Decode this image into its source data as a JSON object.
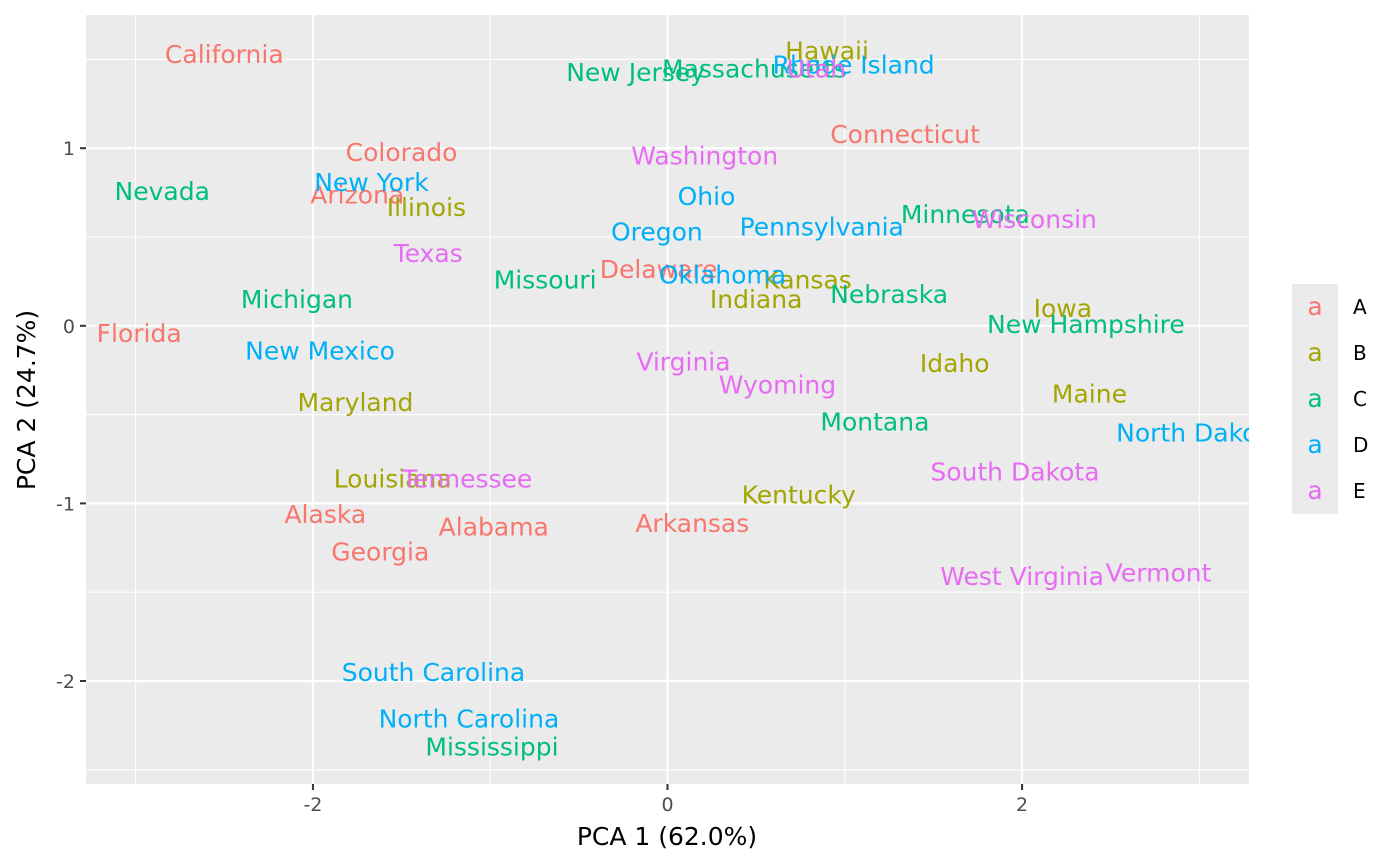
{
  "chart_data": {
    "type": "scatter",
    "xlabel": "PCA 1 (62.0%)",
    "ylabel": "PCA 2 (24.7%)",
    "xlim": [
      -3.28,
      3.28
    ],
    "ylim": [
      -2.58,
      1.75
    ],
    "x_ticks": [
      -2,
      0,
      2
    ],
    "y_ticks": [
      -2,
      -1,
      0,
      1
    ],
    "grid": true,
    "legend_position": "right",
    "legend_key_glyph": "a",
    "groups": [
      {
        "name": "A",
        "color": "#F8766D"
      },
      {
        "name": "B",
        "color": "#A3A500"
      },
      {
        "name": "C",
        "color": "#00BF7D"
      },
      {
        "name": "D",
        "color": "#00B0F6"
      },
      {
        "name": "E",
        "color": "#E76BF3"
      }
    ],
    "points": [
      {
        "label": "Alabama",
        "x": -0.98,
        "y": -1.13,
        "group": "A"
      },
      {
        "label": "Alaska",
        "x": -1.93,
        "y": -1.06,
        "group": "A"
      },
      {
        "label": "Arizona",
        "x": -1.75,
        "y": 0.74,
        "group": "A"
      },
      {
        "label": "Arkansas",
        "x": 0.14,
        "y": -1.11,
        "group": "A"
      },
      {
        "label": "California",
        "x": -2.5,
        "y": 1.53,
        "group": "A"
      },
      {
        "label": "Colorado",
        "x": -1.5,
        "y": 0.98,
        "group": "A"
      },
      {
        "label": "Connecticut",
        "x": 1.34,
        "y": 1.08,
        "group": "A"
      },
      {
        "label": "Delaware",
        "x": -0.05,
        "y": 0.32,
        "group": "A"
      },
      {
        "label": "Florida",
        "x": -2.98,
        "y": -0.04,
        "group": "A"
      },
      {
        "label": "Georgia",
        "x": -1.62,
        "y": -1.27,
        "group": "A"
      },
      {
        "label": "Hawaii",
        "x": 0.9,
        "y": 1.55,
        "group": "B"
      },
      {
        "label": "Idaho",
        "x": 1.62,
        "y": -0.21,
        "group": "B"
      },
      {
        "label": "Illinois",
        "x": -1.36,
        "y": 0.67,
        "group": "B"
      },
      {
        "label": "Indiana",
        "x": 0.5,
        "y": 0.15,
        "group": "B"
      },
      {
        "label": "Iowa",
        "x": 2.23,
        "y": 0.1,
        "group": "B"
      },
      {
        "label": "Kansas",
        "x": 0.79,
        "y": 0.26,
        "group": "B"
      },
      {
        "label": "Kentucky",
        "x": 0.74,
        "y": -0.95,
        "group": "B"
      },
      {
        "label": "Louisiana",
        "x": -1.55,
        "y": -0.86,
        "group": "B"
      },
      {
        "label": "Maine",
        "x": 2.38,
        "y": -0.38,
        "group": "B"
      },
      {
        "label": "Maryland",
        "x": -1.76,
        "y": -0.43,
        "group": "B"
      },
      {
        "label": "Massachusetts",
        "x": 0.49,
        "y": 1.45,
        "group": "C"
      },
      {
        "label": "Michigan",
        "x": -2.09,
        "y": 0.15,
        "group": "C"
      },
      {
        "label": "Minnesota",
        "x": 1.68,
        "y": 0.63,
        "group": "C"
      },
      {
        "label": "Mississippi",
        "x": -0.99,
        "y": -2.37,
        "group": "C"
      },
      {
        "label": "Missouri",
        "x": -0.69,
        "y": 0.26,
        "group": "C"
      },
      {
        "label": "Montana",
        "x": 1.17,
        "y": -0.54,
        "group": "C"
      },
      {
        "label": "Nebraska",
        "x": 1.25,
        "y": 0.18,
        "group": "C"
      },
      {
        "label": "Nevada",
        "x": -2.85,
        "y": 0.76,
        "group": "C"
      },
      {
        "label": "New Hampshire",
        "x": 2.36,
        "y": 0.01,
        "group": "C"
      },
      {
        "label": "New Jersey",
        "x": -0.18,
        "y": 1.43,
        "group": "C"
      },
      {
        "label": "New Mexico",
        "x": -1.96,
        "y": -0.14,
        "group": "D"
      },
      {
        "label": "New York",
        "x": -1.67,
        "y": 0.81,
        "group": "D"
      },
      {
        "label": "North Carolina",
        "x": -1.12,
        "y": -2.21,
        "group": "D"
      },
      {
        "label": "North Dakota",
        "x": 3.0,
        "y": -0.6,
        "group": "D"
      },
      {
        "label": "Ohio",
        "x": 0.22,
        "y": 0.73,
        "group": "D"
      },
      {
        "label": "Oklahoma",
        "x": 0.31,
        "y": 0.29,
        "group": "D"
      },
      {
        "label": "Oregon",
        "x": -0.06,
        "y": 0.53,
        "group": "D"
      },
      {
        "label": "Pennsylvania",
        "x": 0.87,
        "y": 0.56,
        "group": "D"
      },
      {
        "label": "Rhode Island",
        "x": 1.05,
        "y": 1.47,
        "group": "D"
      },
      {
        "label": "South Carolina",
        "x": -1.32,
        "y": -1.95,
        "group": "D"
      },
      {
        "label": "South Dakota",
        "x": 1.96,
        "y": -0.82,
        "group": "E"
      },
      {
        "label": "Tennessee",
        "x": -1.13,
        "y": -0.86,
        "group": "E"
      },
      {
        "label": "Texas",
        "x": -1.35,
        "y": 0.41,
        "group": "E"
      },
      {
        "label": "Utah",
        "x": 0.84,
        "y": 1.45,
        "group": "E"
      },
      {
        "label": "Vermont",
        "x": 2.77,
        "y": -1.39,
        "group": "E"
      },
      {
        "label": "Virginia",
        "x": 0.09,
        "y": -0.2,
        "group": "E"
      },
      {
        "label": "Washington",
        "x": 0.21,
        "y": 0.96,
        "group": "E"
      },
      {
        "label": "West Virginia",
        "x": 2.0,
        "y": -1.41,
        "group": "E"
      },
      {
        "label": "Wisconsin",
        "x": 2.07,
        "y": 0.6,
        "group": "E"
      },
      {
        "label": "Wyoming",
        "x": 0.62,
        "y": -0.33,
        "group": "E"
      }
    ]
  }
}
